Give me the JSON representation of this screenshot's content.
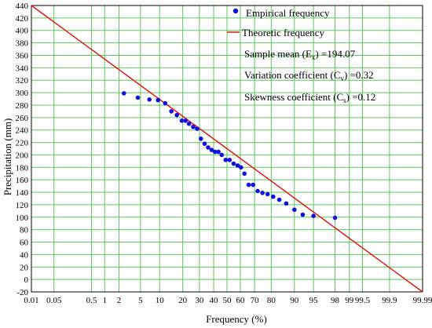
{
  "chart_data": {
    "type": "scatter",
    "xlabel": "Frequency (%)",
    "ylabel": "Precipitation (mm)",
    "x_scale": "probability",
    "ylim": [
      -20,
      440
    ],
    "yticks": [
      -20,
      0,
      20,
      40,
      60,
      80,
      100,
      120,
      140,
      160,
      180,
      200,
      220,
      240,
      260,
      280,
      300,
      320,
      340,
      360,
      380,
      400,
      420,
      440
    ],
    "xticks": [
      "0.01",
      "0.05",
      "0.5",
      "1",
      "2",
      "5",
      "10",
      "20",
      "30",
      "40",
      "50",
      "60",
      "70",
      "80",
      "90",
      "95",
      "98",
      "99",
      "99.5",
      "99.9",
      "99.99"
    ],
    "grid": true,
    "colors": {
      "grid": "#5cc65c",
      "empirical": "#1010e0",
      "theoretic": "#e01818"
    },
    "legend": {
      "position": "top-right",
      "empirical": "Empirical frequency",
      "theoretic": "Theoretic frequency",
      "mean_pre": "Sample mean (E",
      "mean_sub": "x",
      "mean_post": ") =194.07",
      "cv_pre": "Variation coefficient (C",
      "cv_sub": "v",
      "cv_post": ") =0.32",
      "cs_pre": "Skewness coefficient (C",
      "cs_sub": "s",
      "cs_post": ") =0.12"
    },
    "series": [
      {
        "name": "Theoretic frequency",
        "kind": "line",
        "points": [
          [
            0.01,
            440
          ],
          [
            99.99,
            -20
          ]
        ]
      },
      {
        "name": "Empirical frequency",
        "kind": "scatter",
        "points": [
          [
            2.5,
            299
          ],
          [
            4.5,
            292
          ],
          [
            7.0,
            289
          ],
          [
            9.5,
            288
          ],
          [
            12,
            283
          ],
          [
            14.5,
            270
          ],
          [
            17,
            264
          ],
          [
            19.5,
            255
          ],
          [
            21.5,
            255
          ],
          [
            23.5,
            250
          ],
          [
            26,
            245
          ],
          [
            28.5,
            242
          ],
          [
            31,
            226
          ],
          [
            33.5,
            218
          ],
          [
            36,
            212
          ],
          [
            38.5,
            208
          ],
          [
            41,
            205
          ],
          [
            43.5,
            205
          ],
          [
            46,
            200
          ],
          [
            49,
            192
          ],
          [
            52,
            192
          ],
          [
            55,
            186
          ],
          [
            58,
            183
          ],
          [
            60.5,
            180
          ],
          [
            63,
            170
          ],
          [
            66,
            152
          ],
          [
            69,
            152
          ],
          [
            72,
            142
          ],
          [
            75,
            139
          ],
          [
            78,
            137
          ],
          [
            81,
            133
          ],
          [
            84,
            128
          ],
          [
            87,
            122
          ],
          [
            90,
            112
          ],
          [
            92.5,
            104
          ],
          [
            95,
            102
          ],
          [
            98,
            99
          ]
        ]
      }
    ]
  }
}
